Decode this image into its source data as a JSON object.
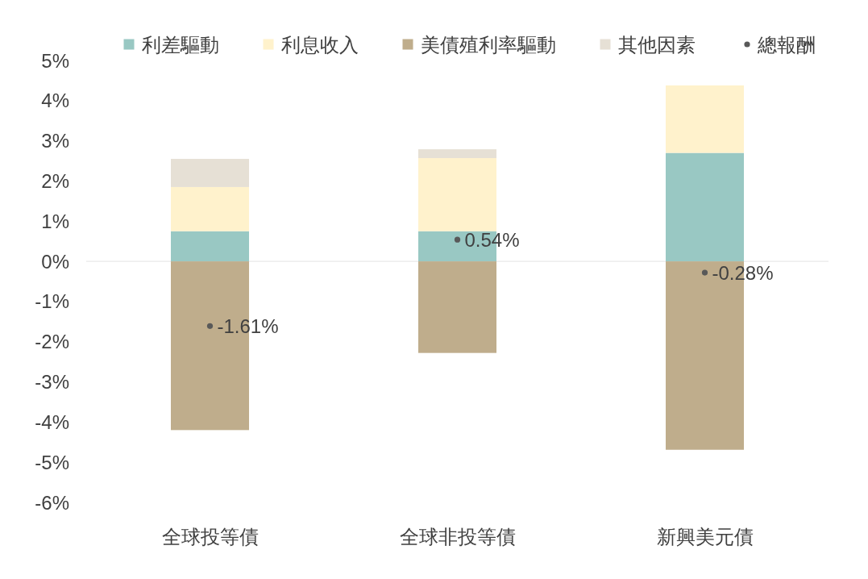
{
  "chart_data": {
    "type": "bar",
    "stacked": true,
    "categories": [
      "全球投等債",
      "全球非投等債",
      "新興美元債"
    ],
    "series": [
      {
        "name": "利差驅動",
        "color": "#99c8c3",
        "values": [
          0.75,
          0.75,
          2.7
        ]
      },
      {
        "name": "利息收入",
        "color": "#fff2cc",
        "values": [
          1.1,
          1.82,
          1.68
        ]
      },
      {
        "name": "美債殖利率驅動",
        "color": "#bfad8c",
        "values": [
          -4.2,
          -2.28,
          -4.69
        ]
      },
      {
        "name": "其他因素",
        "color": "#e6e0d5",
        "values": [
          0.7,
          0.22,
          null
        ]
      },
      {
        "name": "總報酬",
        "type": "scatter",
        "marker": "circle",
        "color": "#595959",
        "x": [
          "全球投等債",
          "全球非投等債",
          "新興美元債"
        ],
        "values": [
          -1.61,
          0.54,
          -0.28
        ],
        "value_labels": [
          "-1.61%",
          "0.54%",
          "-0.28%"
        ]
      }
    ],
    "ylim": [
      -6,
      5
    ],
    "yticks": [
      {
        "value": -6,
        "label": "-6%"
      },
      {
        "value": -5,
        "label": "-5%"
      },
      {
        "value": -4,
        "label": "-4%"
      },
      {
        "value": -3,
        "label": "-3%"
      },
      {
        "value": -2,
        "label": "-2%"
      },
      {
        "value": -1,
        "label": "-1%"
      },
      {
        "value": 0,
        "label": "0%"
      },
      {
        "value": 1,
        "label": "1%"
      },
      {
        "value": 2,
        "label": "2%"
      },
      {
        "value": 3,
        "label": "3%"
      },
      {
        "value": 4,
        "label": "4%"
      },
      {
        "value": 5,
        "label": "5%"
      }
    ],
    "ref_lines": [
      {
        "axis": "y",
        "value": 0,
        "color": "#e3e3e3"
      }
    ],
    "legend": "top"
  }
}
